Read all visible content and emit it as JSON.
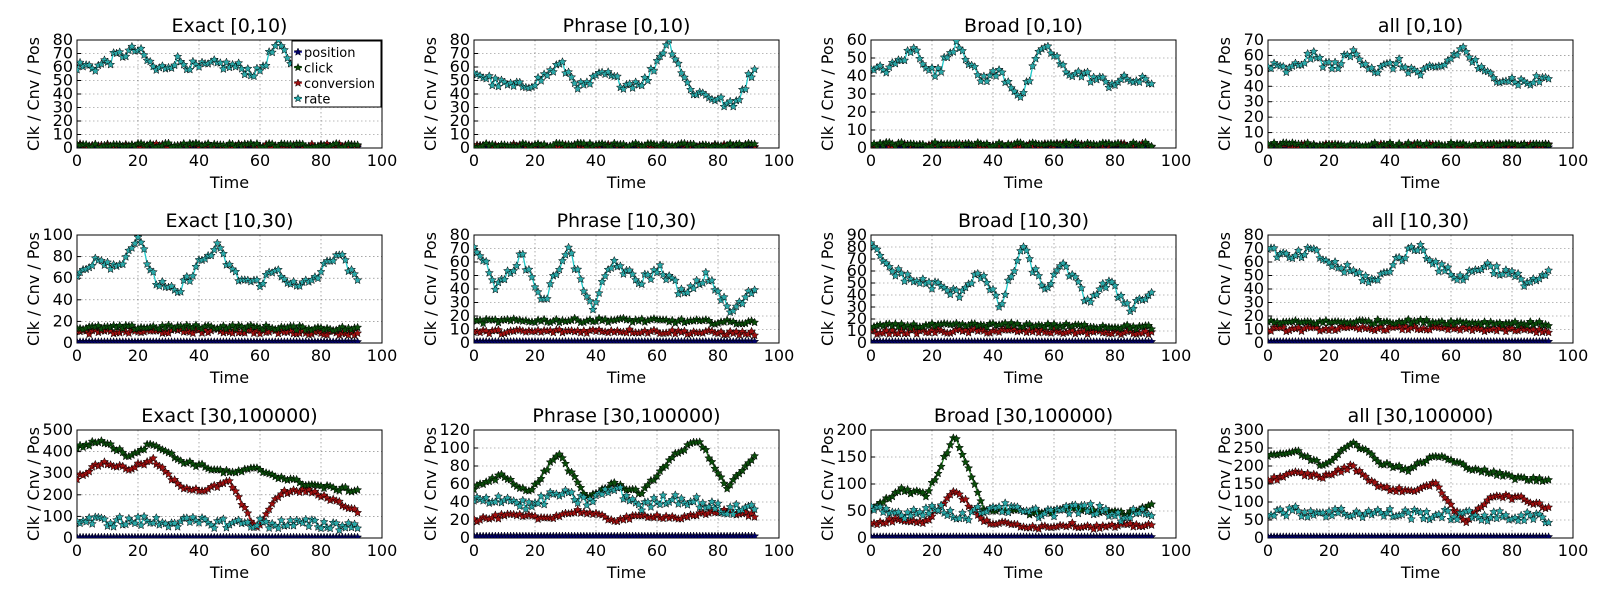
{
  "figure": {
    "series_names": [
      "position",
      "click",
      "conversion",
      "rate"
    ],
    "series_colors": {
      "position": "#0000aa",
      "click": "#1a7a1a",
      "conversion": "#c41a1a",
      "rate": "#20c8c8"
    },
    "marker_fill": {
      "position": "#000066",
      "click": "#0a4d0a",
      "conversion": "#a01010",
      "rate": "#2aa8a8"
    },
    "legend_in_first_panel": true,
    "legend_labels": [
      "position",
      "click",
      "conversion",
      "rate"
    ]
  },
  "chart_data": [
    {
      "type": "line",
      "title": "Exact [0,10)",
      "xlabel": "Time",
      "ylabel": "Clk / Cnv / Pos",
      "xlim": [
        0,
        100
      ],
      "ylim": [
        0,
        80
      ],
      "yticks": [
        0,
        10,
        20,
        30,
        40,
        50,
        60,
        70,
        80
      ],
      "xticks": [
        0,
        20,
        40,
        60,
        80,
        100
      ],
      "grid": true,
      "legend": "top-right",
      "approx_levels": {
        "position": 0.5,
        "click": 2,
        "conversion": 1.5,
        "rate": 60
      },
      "series": [
        {
          "name": "position",
          "values": [
            0.5,
            0.5,
            0.5
          ]
        },
        {
          "name": "click",
          "values": [
            2,
            2,
            2
          ]
        },
        {
          "name": "conversion",
          "values": [
            1.5,
            1.5,
            1.5
          ]
        },
        {
          "name": "rate",
          "values": [
            61,
            60,
            68,
            73,
            57,
            65,
            59,
            62,
            60,
            55,
            77,
            58,
            62,
            61,
            58
          ]
        }
      ]
    },
    {
      "type": "line",
      "title": "Phrase [0,10)",
      "xlabel": "Time",
      "ylabel": "Clk / Cnv / Pos",
      "xlim": [
        0,
        100
      ],
      "ylim": [
        0,
        80
      ],
      "yticks": [
        0,
        10,
        20,
        30,
        40,
        50,
        60,
        70,
        80
      ],
      "xticks": [
        0,
        20,
        40,
        60,
        80,
        100
      ],
      "grid": true,
      "approx_levels": {
        "position": 0.5,
        "click": 2,
        "conversion": 1.5,
        "rate": 47
      },
      "series": [
        {
          "name": "position",
          "values": [
            0.5,
            0.5,
            0.5
          ]
        },
        {
          "name": "click",
          "values": [
            2,
            2,
            2
          ]
        },
        {
          "name": "conversion",
          "values": [
            1.5,
            1.5,
            1.5
          ]
        },
        {
          "name": "rate",
          "values": [
            57,
            48,
            45,
            50,
            62,
            44,
            55,
            47,
            50,
            80,
            43,
            38,
            30,
            60
          ]
        }
      ]
    },
    {
      "type": "line",
      "title": "Broad [0,10)",
      "xlabel": "Time",
      "ylabel": "Clk / Cnv / Pos",
      "xlim": [
        0,
        100
      ],
      "ylim": [
        0,
        60
      ],
      "yticks": [
        0,
        10,
        20,
        30,
        40,
        50,
        60
      ],
      "xticks": [
        0,
        20,
        40,
        60,
        80,
        100
      ],
      "grid": true,
      "approx_levels": {
        "position": 0.5,
        "click": 2,
        "conversion": 1.5,
        "rate": 42
      },
      "series": [
        {
          "name": "position",
          "values": [
            0.5,
            0.5,
            0.5
          ]
        },
        {
          "name": "click",
          "values": [
            2,
            2,
            2
          ]
        },
        {
          "name": "conversion",
          "values": [
            1.5,
            1.5,
            1.5
          ]
        },
        {
          "name": "rate",
          "values": [
            42,
            45,
            55,
            40,
            60,
            38,
            42,
            28,
            58,
            43,
            40,
            36,
            38,
            36
          ]
        }
      ]
    },
    {
      "type": "line",
      "title": "all [0,10)",
      "xlabel": "Time",
      "ylabel": "Clk / Cnv / Pos",
      "xlim": [
        0,
        100
      ],
      "ylim": [
        0,
        70
      ],
      "yticks": [
        0,
        10,
        20,
        30,
        40,
        50,
        60,
        70
      ],
      "xticks": [
        0,
        20,
        40,
        60,
        80,
        100
      ],
      "grid": true,
      "approx_levels": {
        "position": 0.5,
        "click": 2,
        "conversion": 1.5,
        "rate": 50
      },
      "series": [
        {
          "name": "position",
          "values": [
            0.5,
            0.5,
            0.5
          ]
        },
        {
          "name": "click",
          "values": [
            2,
            2,
            2
          ]
        },
        {
          "name": "conversion",
          "values": [
            1.5,
            1.5,
            1.5
          ]
        },
        {
          "name": "rate",
          "values": [
            53,
            50,
            60,
            52,
            62,
            50,
            55,
            48,
            52,
            65,
            48,
            45,
            42,
            46
          ]
        }
      ]
    },
    {
      "type": "line",
      "title": "Exact [10,30)",
      "xlabel": "Time",
      "ylabel": "Clk / Cnv / Pos",
      "xlim": [
        0,
        100
      ],
      "ylim": [
        0,
        100
      ],
      "yticks": [
        0,
        20,
        40,
        60,
        80,
        100
      ],
      "xticks": [
        0,
        20,
        40,
        60,
        80,
        100
      ],
      "grid": true,
      "approx_levels": {
        "position": 1,
        "click": 14,
        "conversion": 10,
        "rate": 65
      },
      "series": [
        {
          "name": "position",
          "values": [
            1,
            1,
            1
          ]
        },
        {
          "name": "click",
          "values": [
            14,
            15,
            13
          ]
        },
        {
          "name": "conversion",
          "values": [
            10,
            11,
            9
          ]
        },
        {
          "name": "rate",
          "values": [
            62,
            80,
            70,
            97,
            55,
            45,
            72,
            88,
            60,
            55,
            68,
            50,
            62,
            85,
            55
          ]
        }
      ]
    },
    {
      "type": "line",
      "title": "Phrase [10,30)",
      "xlabel": "Time",
      "ylabel": "Clk / Cnv / Pos",
      "xlim": [
        0,
        100
      ],
      "ylim": [
        0,
        80
      ],
      "yticks": [
        0,
        10,
        20,
        30,
        40,
        50,
        60,
        70,
        80
      ],
      "xticks": [
        0,
        20,
        40,
        60,
        80,
        100
      ],
      "grid": true,
      "approx_levels": {
        "position": 1,
        "click": 16,
        "conversion": 8,
        "rate": 45
      },
      "series": [
        {
          "name": "position",
          "values": [
            1,
            1,
            1
          ]
        },
        {
          "name": "click",
          "values": [
            16,
            17,
            15
          ]
        },
        {
          "name": "conversion",
          "values": [
            8,
            9,
            7
          ]
        },
        {
          "name": "rate",
          "values": [
            75,
            40,
            65,
            30,
            72,
            25,
            60,
            45,
            55,
            35,
            50,
            22,
            40
          ]
        }
      ]
    },
    {
      "type": "line",
      "title": "Broad [10,30)",
      "xlabel": "Time",
      "ylabel": "Clk / Cnv / Pos",
      "xlim": [
        0,
        100
      ],
      "ylim": [
        0,
        90
      ],
      "yticks": [
        0,
        10,
        20,
        30,
        40,
        50,
        60,
        70,
        80,
        90
      ],
      "xticks": [
        0,
        20,
        40,
        60,
        80,
        100
      ],
      "grid": true,
      "approx_levels": {
        "position": 1,
        "click": 14,
        "conversion": 9,
        "rate": 47
      },
      "series": [
        {
          "name": "position",
          "values": [
            1,
            1,
            1
          ]
        },
        {
          "name": "click",
          "values": [
            14,
            15,
            13
          ]
        },
        {
          "name": "conversion",
          "values": [
            9,
            10,
            8
          ]
        },
        {
          "name": "rate",
          "values": [
            80,
            60,
            52,
            48,
            40,
            60,
            30,
            80,
            45,
            65,
            35,
            50,
            30,
            42
          ]
        }
      ]
    },
    {
      "type": "line",
      "title": "all [10,30)",
      "xlabel": "Time",
      "ylabel": "Clk / Cnv / Pos",
      "xlim": [
        0,
        100
      ],
      "ylim": [
        0,
        80
      ],
      "yticks": [
        0,
        10,
        20,
        30,
        40,
        50,
        60,
        70,
        80
      ],
      "xticks": [
        0,
        20,
        40,
        60,
        80,
        100
      ],
      "grid": true,
      "approx_levels": {
        "position": 1,
        "click": 15,
        "conversion": 10,
        "rate": 55
      },
      "series": [
        {
          "name": "position",
          "values": [
            1,
            1,
            1
          ]
        },
        {
          "name": "click",
          "values": [
            15,
            16,
            14
          ]
        },
        {
          "name": "conversion",
          "values": [
            10,
            11,
            9
          ]
        },
        {
          "name": "rate",
          "values": [
            70,
            62,
            68,
            58,
            52,
            45,
            62,
            72,
            55,
            48,
            58,
            52,
            45,
            50
          ]
        }
      ]
    },
    {
      "type": "line",
      "title": "Exact [30,100000)",
      "xlabel": "Time",
      "ylabel": "Clk / Cnv / Pos",
      "xlim": [
        0,
        100
      ],
      "ylim": [
        0,
        500
      ],
      "yticks": [
        0,
        100,
        200,
        300,
        400,
        500
      ],
      "xticks": [
        0,
        20,
        40,
        60,
        80,
        100
      ],
      "grid": true,
      "approx_levels": {
        "position": 3,
        "click": 330,
        "conversion": 250,
        "rate": 75
      },
      "series": [
        {
          "name": "position",
          "values": [
            3,
            3,
            3
          ]
        },
        {
          "name": "click",
          "values": [
            420,
            450,
            380,
            440,
            360,
            330,
            300,
            320,
            280,
            250,
            230,
            220
          ]
        },
        {
          "name": "conversion",
          "values": [
            280,
            350,
            320,
            360,
            240,
            220,
            260,
            40,
            210,
            220,
            180,
            120
          ]
        },
        {
          "name": "rate",
          "values": [
            80,
            75,
            78,
            72,
            70,
            68,
            65,
            62,
            55
          ]
        }
      ]
    },
    {
      "type": "line",
      "title": "Phrase [30,100000)",
      "xlabel": "Time",
      "ylabel": "Clk / Cnv / Pos",
      "xlim": [
        0,
        100
      ],
      "ylim": [
        0,
        120
      ],
      "yticks": [
        0,
        20,
        40,
        60,
        80,
        100,
        120
      ],
      "xticks": [
        0,
        20,
        40,
        60,
        80,
        100
      ],
      "grid": true,
      "approx_levels": {
        "position": 2,
        "click": 60,
        "conversion": 20,
        "rate": 40
      },
      "series": [
        {
          "name": "position",
          "values": [
            2,
            2,
            2
          ]
        },
        {
          "name": "click",
          "values": [
            55,
            70,
            50,
            95,
            45,
            60,
            50,
            88,
            110,
            55,
            90
          ]
        },
        {
          "name": "conversion",
          "values": [
            20,
            25,
            22,
            30,
            20,
            25,
            22,
            30,
            25
          ]
        },
        {
          "name": "rate",
          "values": [
            40,
            45,
            35,
            50,
            40,
            55,
            35,
            45,
            40,
            30,
            35
          ]
        }
      ]
    },
    {
      "type": "line",
      "title": "Broad [30,100000)",
      "xlabel": "Time",
      "ylabel": "Clk / Cnv / Pos",
      "xlim": [
        0,
        100
      ],
      "ylim": [
        0,
        200
      ],
      "yticks": [
        0,
        50,
        100,
        150,
        200
      ],
      "xticks": [
        0,
        20,
        40,
        60,
        80,
        100
      ],
      "grid": true,
      "approx_levels": {
        "position": 2,
        "click": 50,
        "conversion": 25,
        "rate": 45
      },
      "series": [
        {
          "name": "position",
          "values": [
            2,
            2,
            2
          ]
        },
        {
          "name": "click",
          "values": [
            50,
            90,
            80,
            190,
            55,
            50,
            45,
            55,
            50,
            45,
            60
          ]
        },
        {
          "name": "conversion",
          "values": [
            25,
            35,
            30,
            90,
            30,
            25,
            20,
            25,
            20,
            22,
            25
          ]
        },
        {
          "name": "rate",
          "values": [
            50,
            45,
            55,
            40,
            60,
            45,
            50,
            55,
            40,
            50
          ]
        }
      ]
    },
    {
      "type": "line",
      "title": "all [30,100000)",
      "xlabel": "Time",
      "ylabel": "Clk / Cnv / Pos",
      "xlim": [
        0,
        100
      ],
      "ylim": [
        0,
        300
      ],
      "yticks": [
        0,
        50,
        100,
        150,
        200,
        250,
        300
      ],
      "xticks": [
        0,
        20,
        40,
        60,
        80,
        100
      ],
      "grid": true,
      "approx_levels": {
        "position": 3,
        "click": 195,
        "conversion": 140,
        "rate": 68
      },
      "series": [
        {
          "name": "position",
          "values": [
            3,
            3,
            3
          ]
        },
        {
          "name": "click",
          "values": [
            230,
            240,
            200,
            270,
            210,
            190,
            230,
            200,
            180,
            165,
            160
          ]
        },
        {
          "name": "conversion",
          "values": [
            160,
            180,
            170,
            200,
            140,
            130,
            150,
            40,
            120,
            110,
            85
          ]
        },
        {
          "name": "rate",
          "values": [
            75,
            72,
            70,
            68,
            65,
            62,
            60,
            55
          ]
        }
      ]
    }
  ]
}
